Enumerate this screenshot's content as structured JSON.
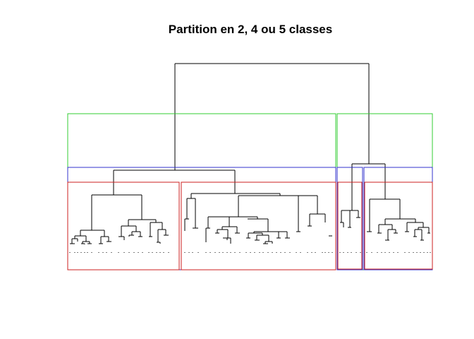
{
  "title": "Partition en 2, 4 ou 5 classes",
  "partition_colors": {
    "two_classes": "#33cc33",
    "four_classes": "#3333cc",
    "five_classes": "#cc2222"
  },
  "branch_color": "#000000",
  "background": "#ffffff"
}
